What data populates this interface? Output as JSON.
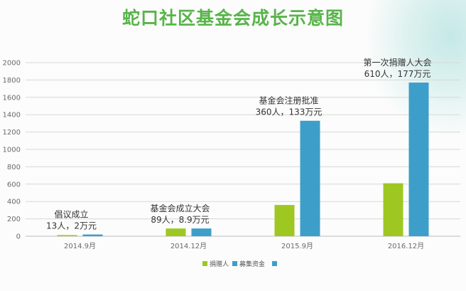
{
  "title": "蛇口社区基金会成长示意图",
  "chart_data": {
    "type": "bar",
    "categories": [
      "2014.9月",
      "2014.12月",
      "2015.9月",
      "2016.12月"
    ],
    "series": [
      {
        "name": "捐赠人",
        "values": [
          13,
          89,
          360,
          610
        ],
        "color": "#9fc721"
      },
      {
        "name": "募集资金",
        "values": [
          20,
          89,
          1330,
          1770
        ],
        "color": "#3d9fc9"
      }
    ],
    "ylim": [
      0,
      2000
    ],
    "yticks": [
      0,
      200,
      400,
      600,
      800,
      1000,
      1200,
      1400,
      1600,
      1800,
      2000
    ],
    "annotations": [
      {
        "line1": "倡议成立",
        "line2": "13人，2万元"
      },
      {
        "line1": "基金会成立大会",
        "line2": "89人，8.9万元"
      },
      {
        "line1": "基金会注册批准",
        "line2": "360人，133万元"
      },
      {
        "line1": "第一次捐赠人大会",
        "line2": "610人，177万元"
      }
    ],
    "grid": true,
    "legend_position": "bottom"
  }
}
